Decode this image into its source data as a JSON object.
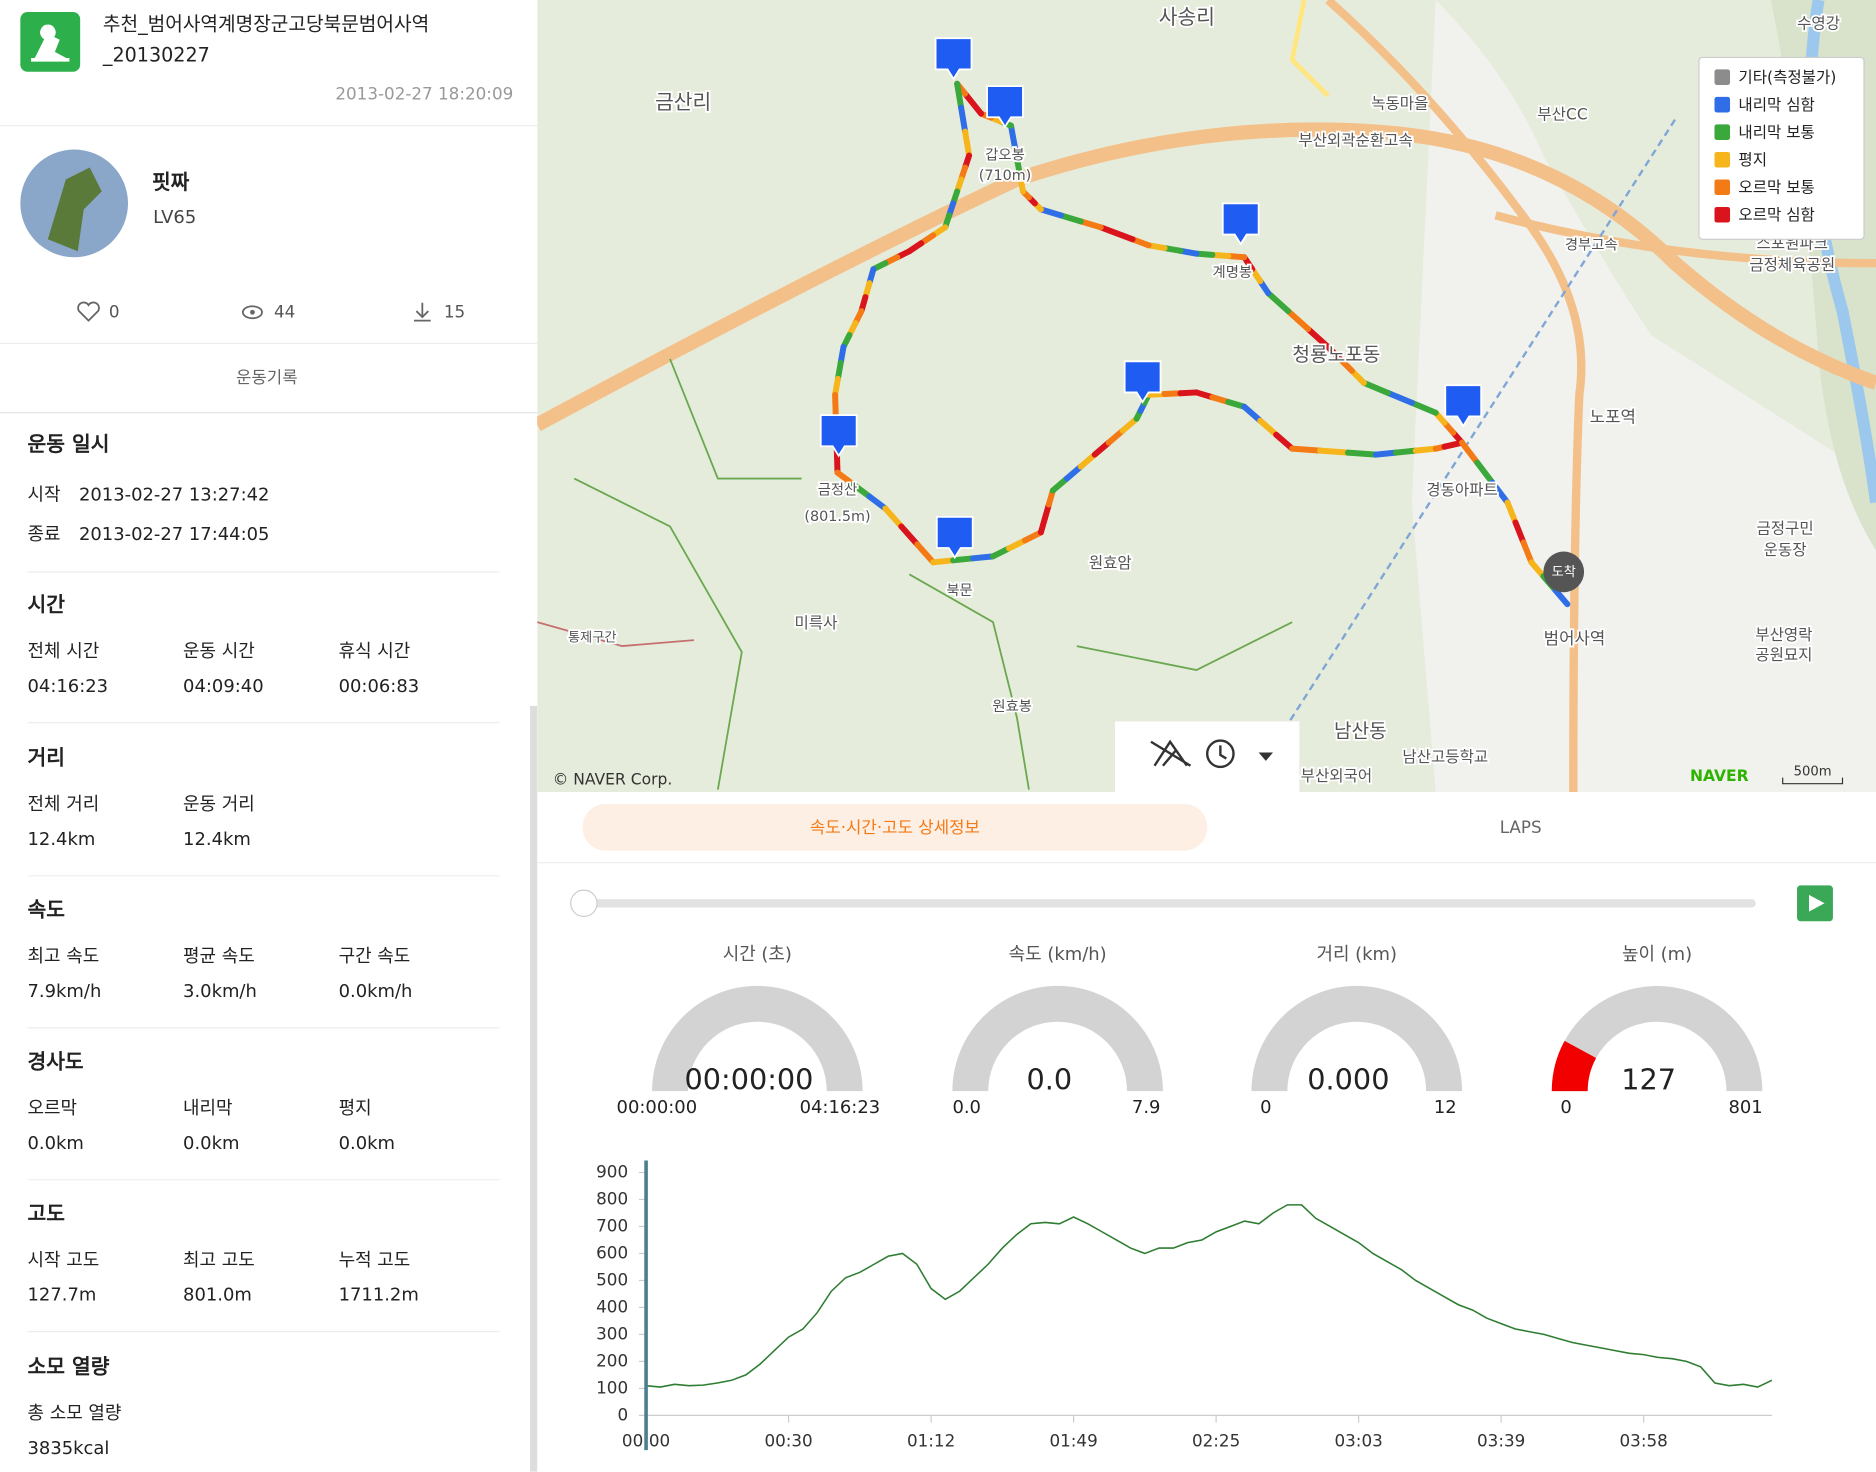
{
  "header": {
    "title_lines": [
      "추천_범어사역계명장군고당북문범어사역",
      "_20130227"
    ],
    "datetime": "2013-02-27 18:20:09"
  },
  "profile": {
    "name": "핏짜",
    "level": "LV65",
    "likes": 0,
    "views": 44,
    "downloads": 15
  },
  "record_tab": "운동기록",
  "datetime_section": {
    "title": "운동 일시",
    "rows": [
      {
        "label": "시작",
        "value": "2013-02-27 13:27:42"
      },
      {
        "label": "종료",
        "value": "2013-02-27 17:44:05"
      }
    ]
  },
  "sections": [
    {
      "title": "시간",
      "items": [
        {
          "label": "전체 시간",
          "value": "04:16:23"
        },
        {
          "label": "운동 시간",
          "value": "04:09:40"
        },
        {
          "label": "휴식 시간",
          "value": "00:06:83"
        }
      ]
    },
    {
      "title": "거리",
      "items": [
        {
          "label": "전체 거리",
          "value": "12.4km"
        },
        {
          "label": "운동 거리",
          "value": "12.4km"
        }
      ]
    },
    {
      "title": "속도",
      "items": [
        {
          "label": "최고 속도",
          "value": "7.9km/h"
        },
        {
          "label": "평균 속도",
          "value": "3.0km/h"
        },
        {
          "label": "구간 속도",
          "value": "0.0km/h"
        }
      ]
    },
    {
      "title": "경사도",
      "items": [
        {
          "label": "오르막",
          "value": "0.0km"
        },
        {
          "label": "내리막",
          "value": "0.0km"
        },
        {
          "label": "평지",
          "value": "0.0km"
        }
      ]
    },
    {
      "title": "고도",
      "items": [
        {
          "label": "시작 고도",
          "value": "127.7m"
        },
        {
          "label": "최고 고도",
          "value": "801.0m"
        },
        {
          "label": "누적 고도",
          "value": "1711.2m"
        }
      ]
    },
    {
      "title": "소모 열량",
      "items": [
        {
          "label": "총 소모 열량",
          "value": "3835kcal"
        }
      ]
    }
  ],
  "map": {
    "labels": [
      "사송리",
      "금산리",
      "녹동마을",
      "부산CC",
      "부산외곽순환고속",
      "청룡노포동",
      "노포역",
      "경동아파트",
      "원효암",
      "미륵사",
      "북문",
      "원효봉",
      "남산동",
      "남산고등학교",
      "부산외국어",
      "범어사역",
      "금정구민",
      "운동장",
      "부산영락",
      "공원묘지",
      "스포원파크",
      "금정체육공원",
      "수영강",
      "계명봉",
      "갑오봉",
      "(710m)",
      "금정산",
      "(801.5m)",
      "통제구간",
      "경부고속"
    ],
    "legend": [
      {
        "name": "기타(측정불가)",
        "color": "#8c8c8c"
      },
      {
        "name": "내리막 심함",
        "color": "#2f6ee6"
      },
      {
        "name": "내리막 보통",
        "color": "#3aa83a"
      },
      {
        "name": "평지",
        "color": "#f7b51c"
      },
      {
        "name": "오르막 보통",
        "color": "#f47a16"
      },
      {
        "name": "오르막 심함",
        "color": "#d9141c"
      }
    ],
    "arrival": "도착",
    "copyright": "© NAVER Corp.",
    "brand": "NAVER",
    "scale": "500m"
  },
  "tabs": [
    "속도·시간·고도 상세정보",
    "LAPS"
  ],
  "gauges": [
    {
      "title": "시간 (초)",
      "value_label": "00:00:00",
      "min_label": "00:00:00",
      "max_label": "04:16:23"
    },
    {
      "title": "속도 (km/h)",
      "value_label": "0.0",
      "min_label": "0.0",
      "max_label": "7.9"
    },
    {
      "title": "거리 (km)",
      "value_label": "0.000",
      "min": 0,
      "max": 12
    },
    {
      "title": "높이 (m)",
      "value": 127,
      "min": 0,
      "max": 801
    }
  ],
  "chart_data": {
    "type": "line",
    "color": "#2e7d32",
    "values": [
      110,
      105,
      115,
      110,
      112,
      120,
      130,
      150,
      190,
      240,
      290,
      320,
      380,
      460,
      510,
      530,
      560,
      590,
      600,
      560,
      470,
      430,
      460,
      510,
      560,
      620,
      670,
      710,
      715,
      710,
      735,
      710,
      680,
      650,
      620,
      600,
      620,
      620,
      640,
      650,
      680,
      700,
      720,
      710,
      750,
      780,
      780,
      730,
      700,
      670,
      640,
      600,
      570,
      540,
      500,
      470,
      440,
      410,
      390,
      360,
      340,
      320,
      310,
      300,
      285,
      270,
      260,
      250,
      240,
      230,
      225,
      215,
      210,
      200,
      180,
      120,
      110,
      115,
      105,
      130
    ],
    "xlim": [
      0,
      79
    ],
    "xticks": [
      {
        "value": 0,
        "label": "00:00"
      },
      {
        "value": 10,
        "label": "00:30"
      },
      {
        "value": 20,
        "label": "01:12"
      },
      {
        "value": 30,
        "label": "01:49"
      },
      {
        "value": 40,
        "label": "02:25"
      },
      {
        "value": 50,
        "label": "03:03"
      },
      {
        "value": 60,
        "label": "03:39"
      },
      {
        "value": 70,
        "label": "03:58"
      }
    ],
    "ylim": [
      0,
      900
    ],
    "yticks": [
      0,
      100,
      200,
      300,
      400,
      500,
      600,
      700,
      800,
      900
    ]
  }
}
